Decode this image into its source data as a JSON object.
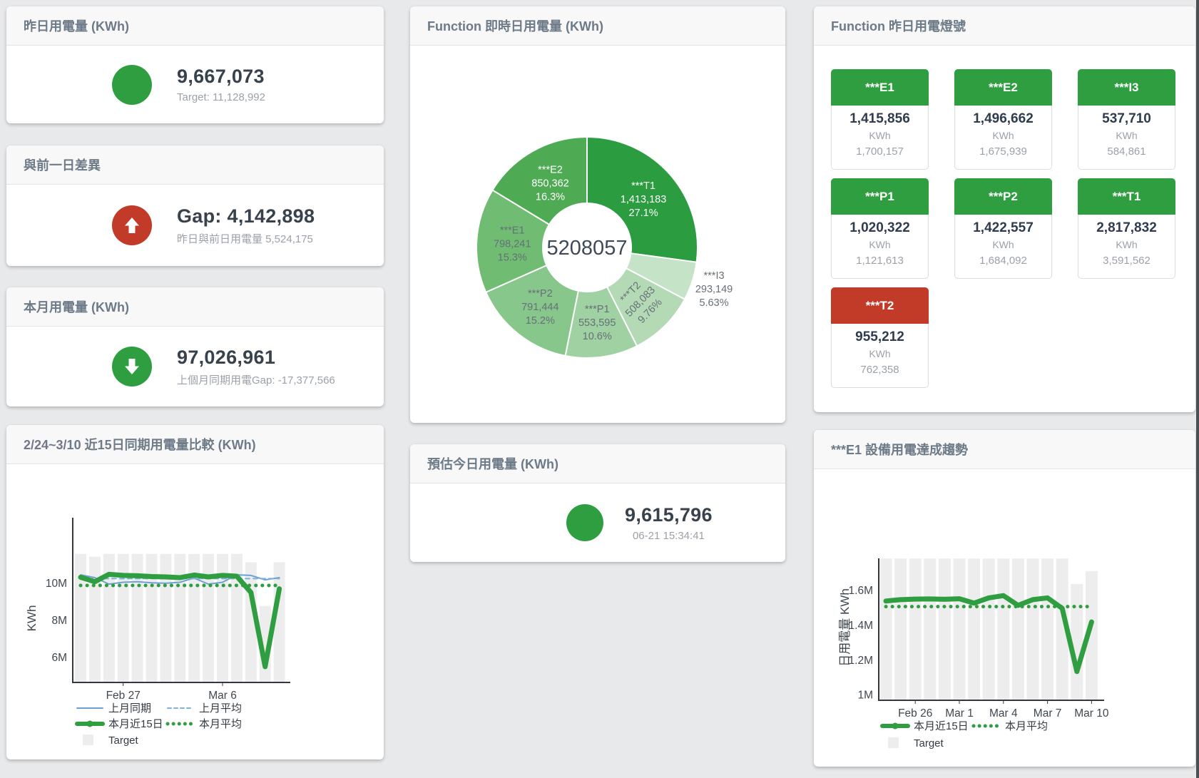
{
  "cards": {
    "yesterday": {
      "title": "昨日用電量 (KWh)",
      "value": "9,667,073",
      "subtext": "Target: 11,128,992",
      "status_color": "#2f9e41"
    },
    "gap": {
      "title": "與前一日差異",
      "value": "Gap: 4,142,898",
      "subtext": "昨日與前日用電量 5,524,175",
      "status_color": "#c23a28",
      "icon": "arrow-up-icon"
    },
    "month": {
      "title": "本月用電量 (KWh)",
      "value": "97,026,961",
      "subtext": "上個月同期用電Gap: -17,377,566",
      "status_color": "#2f9e41",
      "icon": "arrow-down-icon"
    },
    "estimate": {
      "title": "預估今日用電量 (KWh)",
      "value": "9,615,796",
      "subtext": "06-21 15:34:41",
      "status_color": "#2f9e41"
    },
    "realtime": {
      "title": "Function 即時日用電量 (KWh)"
    },
    "lights": {
      "title": "Function 昨日用電燈號",
      "unit": "KWh",
      "tiles": [
        {
          "label": "***E1",
          "value": "1,415,856",
          "target": "1,700,157",
          "color": "#2f9e41"
        },
        {
          "label": "***E2",
          "value": "1,496,662",
          "target": "1,675,939",
          "color": "#2f9e41"
        },
        {
          "label": "***I3",
          "value": "537,710",
          "target": "584,861",
          "color": "#2f9e41"
        },
        {
          "label": "***P1",
          "value": "1,020,322",
          "target": "1,121,613",
          "color": "#2f9e41"
        },
        {
          "label": "***P2",
          "value": "1,422,557",
          "target": "1,684,092",
          "color": "#2f9e41"
        },
        {
          "label": "***T1",
          "value": "2,817,832",
          "target": "3,591,562",
          "color": "#2f9e41"
        },
        {
          "label": "***T2",
          "value": "955,212",
          "target": "762,358",
          "color": "#c23a28"
        }
      ]
    },
    "compare": {
      "title": "2/24~3/10 近15日同期用電量比較 (KWh)"
    },
    "trend": {
      "title": "***E1 設備用電達成趨勢"
    }
  },
  "chart_data": [
    {
      "type": "pie",
      "title": "Function 即時日用電量 (KWh)",
      "donut": true,
      "center_label": "5208057",
      "slices": [
        {
          "name": "***T1",
          "value": "1,413,183",
          "pct": 27.1,
          "pct_label": "27.1%",
          "color": "#2b9c3f",
          "label_color": "#ffffff"
        },
        {
          "name": "***I3",
          "value": "293,149",
          "pct": 5.63,
          "pct_label": "5.63%",
          "color": "#c5e3c6",
          "label_color": "#667077",
          "label_outside": true
        },
        {
          "name": "***T2",
          "value": "508,083",
          "pct": 9.76,
          "pct_label": "9.76%",
          "color": "#b4dab5",
          "label_color": "#667077",
          "label_rotate": -46
        },
        {
          "name": "***P1",
          "value": "553,595",
          "pct": 10.6,
          "pct_label": "10.6%",
          "color": "#a0d1a2",
          "label_color": "#667077"
        },
        {
          "name": "***P2",
          "value": "791,444",
          "pct": 15.2,
          "pct_label": "15.2%",
          "color": "#88c78b",
          "label_color": "#667077"
        },
        {
          "name": "***E1",
          "value": "798,241",
          "pct": 15.3,
          "pct_label": "15.3%",
          "color": "#6fbc72",
          "label_color": "#667077"
        },
        {
          "name": "***E2",
          "value": "850,362",
          "pct": 16.3,
          "pct_label": "16.3%",
          "color": "#4faa54",
          "label_color": "#ffffff"
        }
      ]
    },
    {
      "type": "line",
      "title": "2/24~3/10 近15日同期用電量比較 (KWh)",
      "ylabel": "KWh",
      "values_unit": "millions KWh",
      "categories": [
        "2/24",
        "2/25",
        "2/26",
        "2/27",
        "2/28",
        "3/1",
        "3/2",
        "3/3",
        "3/4",
        "3/5",
        "3/6",
        "3/7",
        "3/8",
        "3/9",
        "3/10"
      ],
      "ylim": [
        4.65,
        13.53
      ],
      "ytick_values": [
        6,
        8,
        10
      ],
      "ytick_labels": [
        "6M",
        "8M",
        "10M"
      ],
      "xticks": [
        {
          "index": 3,
          "label": "Feb 27"
        },
        {
          "index": 10,
          "label": "Mar 6"
        }
      ],
      "series": [
        {
          "name": "Target",
          "type": "bar",
          "color": "#ededed",
          "values": [
            11.58,
            11.43,
            11.58,
            11.58,
            11.58,
            11.58,
            11.58,
            11.58,
            11.58,
            11.58,
            11.58,
            11.58,
            11.13,
            8.77,
            11.13
          ]
        },
        {
          "name": "上月同期",
          "type": "line",
          "style": "solid",
          "color": "#6da0d2",
          "width": 2,
          "values": [
            10.45,
            10.3,
            9.95,
            10.05,
            10.08,
            10.02,
            10.0,
            10.05,
            10.28,
            9.95,
            10.05,
            10.45,
            10.42,
            10.18,
            10.3
          ]
        },
        {
          "name": "上月平均",
          "type": "line",
          "style": "dashed",
          "color": "#7fb0dc",
          "width": 2,
          "constant": 10.25
        },
        {
          "name": "本月平均",
          "type": "line",
          "style": "dotted",
          "color": "#2f9e41",
          "width": 5,
          "constant": 9.88
        },
        {
          "name": "本月近15日",
          "type": "line",
          "style": "solid",
          "color": "#2f9e41",
          "width": 7,
          "values": [
            10.32,
            10.08,
            10.48,
            10.42,
            10.4,
            10.36,
            10.34,
            10.3,
            10.44,
            10.34,
            10.42,
            10.38,
            9.5,
            5.5,
            9.7
          ]
        }
      ],
      "legend_rows": [
        [
          "上月同期",
          "上月平均"
        ],
        [
          "本月近15日",
          "本月平均"
        ],
        [
          "Target"
        ]
      ]
    },
    {
      "type": "line",
      "title": "***E1 設備用電達成趨勢",
      "ylabel": "日用電量 KWh",
      "values_unit": "millions KWh",
      "categories": [
        "2/24",
        "2/25",
        "2/26",
        "2/27",
        "2/28",
        "3/1",
        "3/2",
        "3/3",
        "3/4",
        "3/5",
        "3/6",
        "3/7",
        "3/8",
        "3/9",
        "3/10"
      ],
      "ylim": [
        0.97,
        1.785
      ],
      "ytick_values": [
        1,
        1.2,
        1.4,
        1.6
      ],
      "ytick_labels": [
        "1M",
        "1.2M",
        "1.4M",
        "1.6M"
      ],
      "xticks": [
        {
          "index": 2,
          "label": "Feb 26"
        },
        {
          "index": 5,
          "label": "Mar 1"
        },
        {
          "index": 8,
          "label": "Mar 4"
        },
        {
          "index": 11,
          "label": "Mar 7"
        },
        {
          "index": 14,
          "label": "Mar 10"
        }
      ],
      "series": [
        {
          "name": "Target",
          "type": "bar",
          "color": "#ededed",
          "values": [
            1.784,
            1.784,
            1.784,
            1.784,
            1.784,
            1.784,
            1.784,
            1.784,
            1.784,
            1.784,
            1.784,
            1.784,
            1.784,
            1.638,
            1.712
          ]
        },
        {
          "name": "本月平均",
          "type": "line",
          "style": "dotted",
          "color": "#2f9e41",
          "width": 5,
          "constant": 1.508
        },
        {
          "name": "本月近15日",
          "type": "line",
          "style": "solid",
          "color": "#2f9e41",
          "width": 7,
          "values": [
            1.54,
            1.548,
            1.551,
            1.552,
            1.55,
            1.553,
            1.528,
            1.558,
            1.571,
            1.515,
            1.548,
            1.558,
            1.498,
            1.135,
            1.42
          ]
        }
      ],
      "legend_rows": [
        [
          "本月近15日",
          "本月平均"
        ],
        [
          "Target"
        ]
      ]
    }
  ]
}
